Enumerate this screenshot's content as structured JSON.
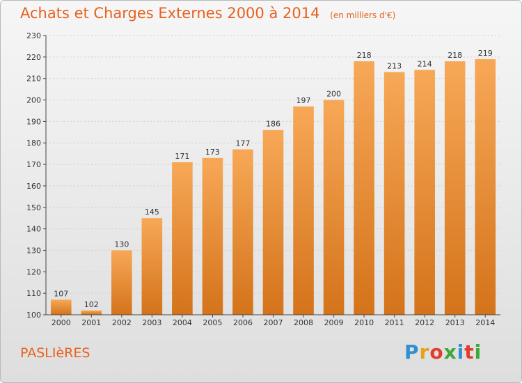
{
  "header": {
    "title": "Achats et Charges Externes 2000 à 2014",
    "unit": "(en milliers d'€)"
  },
  "footer": {
    "commune": "PASLIèRES",
    "logo_letters": [
      "P",
      "r",
      "o",
      "x",
      "i",
      "t",
      "i"
    ],
    "logo_colors": [
      "#2f8fd1",
      "#e3a21a",
      "#e23c2a",
      "#3da83a",
      "#2f8fd1",
      "#e23c2a",
      "#3da83a"
    ]
  },
  "colors": {
    "bar_top": "#f7a857",
    "bar_bottom": "#d4731a",
    "title": "#e8601c",
    "grid": "#d0d0d0",
    "axis": "#444444"
  },
  "chart_data": {
    "type": "bar",
    "categories": [
      "2000",
      "2001",
      "2002",
      "2003",
      "2004",
      "2005",
      "2006",
      "2007",
      "2008",
      "2009",
      "2010",
      "2011",
      "2012",
      "2013",
      "2014"
    ],
    "values": [
      107,
      102,
      130,
      145,
      171,
      173,
      177,
      186,
      197,
      200,
      218,
      213,
      214,
      218,
      219
    ],
    "data_labels": [
      "107",
      "102",
      "130",
      "145",
      "171",
      "173",
      "177",
      "186",
      "197",
      "200",
      "218",
      "213",
      "214",
      "218",
      "219"
    ],
    "yticks": [
      "100",
      "110",
      "120",
      "130",
      "140",
      "150",
      "160",
      "170",
      "180",
      "190",
      "200",
      "210",
      "220",
      "230"
    ],
    "ylim": [
      100,
      230
    ],
    "grid": true,
    "legend": "none"
  }
}
